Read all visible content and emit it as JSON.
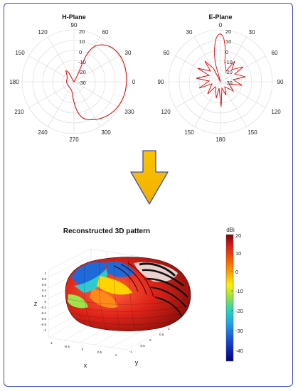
{
  "hplane": {
    "title": "H-Plane",
    "angle_labels": [
      "90",
      "60",
      "30",
      "0",
      "330",
      "300",
      "270",
      "240",
      "210",
      "180",
      "150",
      "120"
    ],
    "radial_labels": [
      "20",
      "10",
      "0",
      "-10",
      "-20",
      "-30"
    ]
  },
  "eplane": {
    "title": "E-Plane",
    "angle_labels": [
      "0",
      "30",
      "60",
      "90",
      "120",
      "150",
      "180",
      "150",
      "120",
      "90",
      "60",
      "30"
    ],
    "radial_labels": [
      "20",
      "10",
      "0",
      "-10",
      "-20",
      "-30"
    ]
  },
  "arrow": {
    "color": "#f7c200",
    "stroke": "#3b4fb3"
  },
  "pattern3d": {
    "title": "Reconstructed 3D pattern",
    "zlabel": "z",
    "xlabel": "x",
    "ylabel": "y",
    "z_ticks": [
      "1",
      "0.8",
      "0.6",
      "0.4",
      "0.2",
      "0",
      "-0.2",
      "-0.4",
      "-0.6",
      "-0.8",
      "-1"
    ],
    "x_ticks": [
      "-1",
      "-0.5",
      "0",
      "0.5",
      "1"
    ],
    "y_ticks": [
      "1",
      "0.5",
      "0",
      "-0.5",
      "-1"
    ]
  },
  "colorbar": {
    "unit": "dBi",
    "ticks": [
      "20",
      "10",
      "0",
      "-10",
      "-20",
      "-30",
      "-40"
    ],
    "colors": [
      "#7f0000",
      "#e31a1c",
      "#ff7f00",
      "#ffd600",
      "#9be84e",
      "#2fd2c6",
      "#1f8fe0",
      "#1c3fd0",
      "#00007f"
    ]
  }
}
